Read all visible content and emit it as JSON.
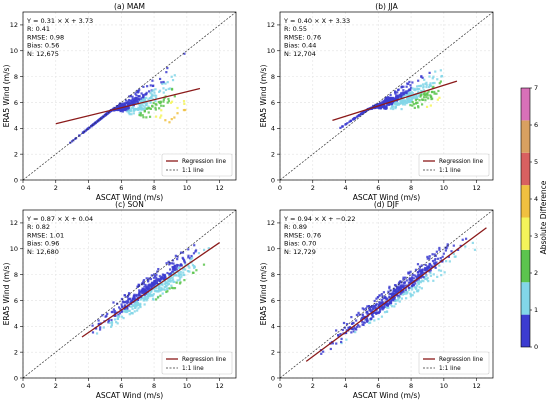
{
  "chart_data": [
    {
      "type": "scatter",
      "title": "(a) MAM",
      "xlabel": "ASCAT Wind (m/s)",
      "ylabel": "ERA5 Wind (m/s)",
      "xlim": [
        0,
        13
      ],
      "ylim": [
        0,
        13
      ],
      "xticks": [
        0,
        2,
        4,
        6,
        8,
        10,
        12
      ],
      "yticks": [
        0,
        2,
        4,
        6,
        8,
        10,
        12
      ],
      "stats": [
        "Y = 0.31 × X + 3.73",
        "R: 0.41",
        "RMSE: 0.98",
        "Bias: 0.56",
        "N: 12,675"
      ],
      "regression": {
        "slope": 0.31,
        "intercept": 3.73,
        "x_range": [
          2.0,
          10.8
        ]
      },
      "point_cloud": {
        "x_range": [
          2.0,
          10.8
        ],
        "slope_upper": 1.0,
        "offset_upper": 0.0,
        "min_y": 2.0
      },
      "legend": {
        "position": "bottom-right",
        "entries": [
          "Regression line",
          "1:1 line"
        ]
      }
    },
    {
      "type": "scatter",
      "title": "(b) JJA",
      "xlabel": "ASCAT Wind (m/s)",
      "ylabel": "ERA5 Wind (m/s)",
      "xlim": [
        0,
        13
      ],
      "ylim": [
        0,
        13
      ],
      "xticks": [
        0,
        2,
        4,
        6,
        8,
        10,
        12
      ],
      "yticks": [
        0,
        2,
        4,
        6,
        8,
        10,
        12
      ],
      "stats": [
        "Y = 0.40 × X + 3.33",
        "R: 0.55",
        "RMSE: 0.76",
        "Bias: 0.44",
        "N: 12,704"
      ],
      "regression": {
        "slope": 0.4,
        "intercept": 3.33,
        "x_range": [
          3.2,
          10.8
        ]
      },
      "point_cloud": {
        "x_range": [
          3.2,
          10.8
        ],
        "slope_upper": 0.85,
        "offset_upper": 0.9,
        "min_y": 3.4
      },
      "legend": {
        "position": "bottom-right",
        "entries": [
          "Regression line",
          "1:1 line"
        ]
      }
    },
    {
      "type": "scatter",
      "title": "(c) SON",
      "xlabel": "ASCAT Wind (m/s)",
      "ylabel": "ERA5 Wind (m/s)",
      "xlim": [
        0,
        13
      ],
      "ylim": [
        0,
        13
      ],
      "xticks": [
        0,
        2,
        4,
        6,
        8,
        10,
        12
      ],
      "yticks": [
        0,
        2,
        4,
        6,
        8,
        10,
        12
      ],
      "stats": [
        "Y = 0.87 × X + 0.04",
        "R: 0.82",
        "RMSE: 1.01",
        "Bias: 0.96",
        "N: 12,680"
      ],
      "regression": {
        "slope": 0.87,
        "intercept": 0.04,
        "x_range": [
          3.6,
          12.0
        ]
      },
      "point_cloud": {
        "x_range": [
          3.6,
          12.0
        ],
        "slope_upper": 0.95,
        "offset_upper": 0.6,
        "min_y": 1.8
      },
      "legend": {
        "position": "bottom-right",
        "entries": [
          "Regression line",
          "1:1 line"
        ]
      }
    },
    {
      "type": "scatter",
      "title": "(d) DJF",
      "xlabel": "ASCAT Wind (m/s)",
      "ylabel": "ERA5 Wind (m/s)",
      "xlim": [
        0,
        13
      ],
      "ylim": [
        0,
        13
      ],
      "xticks": [
        0,
        2,
        4,
        6,
        8,
        10,
        12
      ],
      "yticks": [
        0,
        2,
        4,
        6,
        8,
        10,
        12
      ],
      "stats": [
        "Y = 0.94 × X + −0.22",
        "R: 0.89",
        "RMSE: 0.76",
        "Bias: 0.70",
        "N: 12,729"
      ],
      "regression": {
        "slope": 0.94,
        "intercept": -0.22,
        "x_range": [
          1.6,
          12.6
        ]
      },
      "point_cloud": {
        "x_range": [
          1.6,
          12.6
        ],
        "slope_upper": 1.0,
        "offset_upper": 0.4,
        "min_y": 0.8
      },
      "legend": {
        "position": "bottom-right",
        "entries": [
          "Regression line",
          "1:1 line"
        ]
      }
    }
  ],
  "colorbar": {
    "label": "Absolute Difference",
    "range": [
      0,
      7
    ],
    "ticks": [
      "0",
      "1",
      "2",
      "3",
      "4",
      "5",
      "6",
      "7"
    ],
    "colors": [
      "#3c3cd0",
      "#82d6e8",
      "#5cc44e",
      "#f4f45a",
      "#f0c040",
      "#d86060",
      "#d8a060",
      "#d870b8"
    ]
  },
  "colors": {
    "regression_line": "#8b1a1a",
    "one_to_one_line": "#333333"
  }
}
